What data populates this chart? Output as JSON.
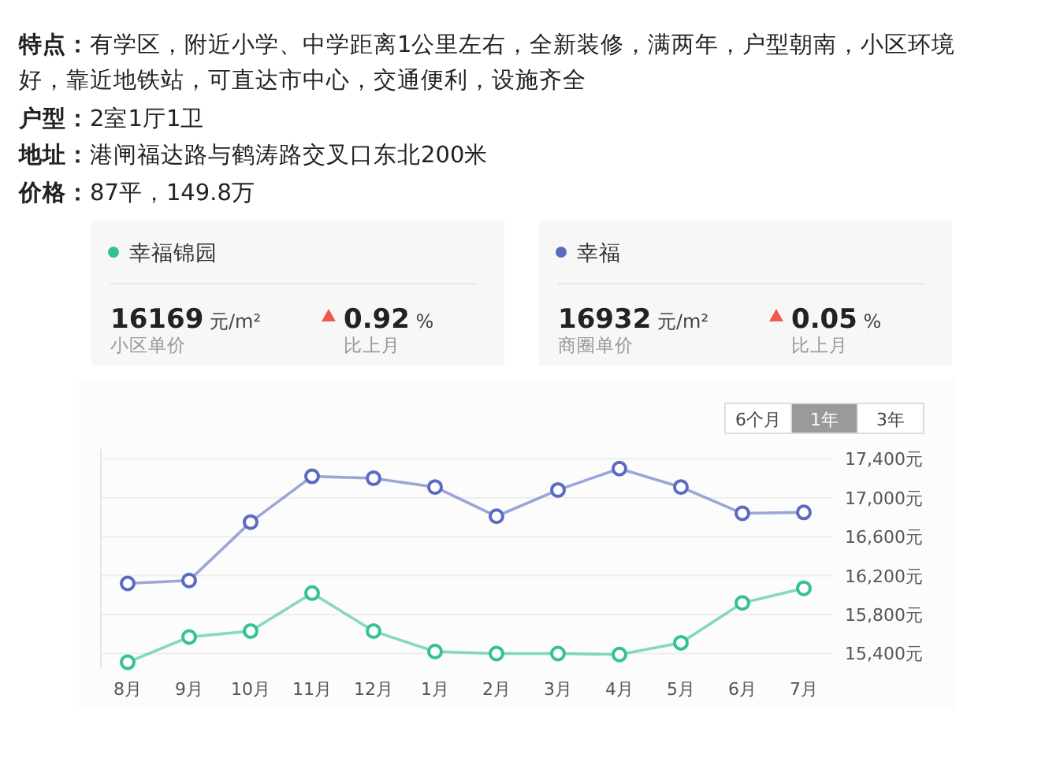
{
  "chart_data": {
    "type": "line",
    "categories": [
      "8月",
      "9月",
      "10月",
      "11月",
      "12月",
      "1月",
      "2月",
      "3月",
      "4月",
      "5月",
      "6月",
      "7月"
    ],
    "series": [
      {
        "name": "幸福锦园",
        "color": "#34c38f",
        "values": [
          15310,
          15570,
          15630,
          16020,
          15630,
          15420,
          15400,
          15400,
          15390,
          15510,
          15920,
          16070
        ]
      },
      {
        "name": "幸福",
        "color": "#5b6bbf",
        "values": [
          16120,
          16150,
          16750,
          17220,
          17200,
          17110,
          16810,
          17080,
          17300,
          17110,
          16840,
          16850
        ]
      }
    ],
    "ylim": [
      15250,
      17500
    ],
    "yticks": [
      {
        "value": 15400,
        "label": "15,400元"
      },
      {
        "value": 15800,
        "label": "15,800元"
      },
      {
        "value": 16200,
        "label": "16,200元"
      },
      {
        "value": 16600,
        "label": "16,600元"
      },
      {
        "value": 17000,
        "label": "17,000元"
      },
      {
        "value": 17400,
        "label": "17,400元"
      }
    ],
    "grid": "y",
    "legend": "top",
    "marker": "circle",
    "line_style": "solid",
    "annotations": [
      "特点：有学区，附近小学、中学距离1公里左右，全新装修，满两年，户型朝南，小区环境好，靠近地铁站，可直达市中心，交通便利，设施齐全",
      "户型：2室1厅1卫",
      "地址：港闸福达路与鹤涛路交叉口东北200米",
      "价格：87平，149.8万",
      "16169 元/m²",
      "小区单价",
      "0.92 %",
      "比上月",
      "16932 元/m²",
      "商圈单价",
      "0.05 %",
      "比上月",
      "6个月",
      "1年",
      "3年"
    ]
  }
}
